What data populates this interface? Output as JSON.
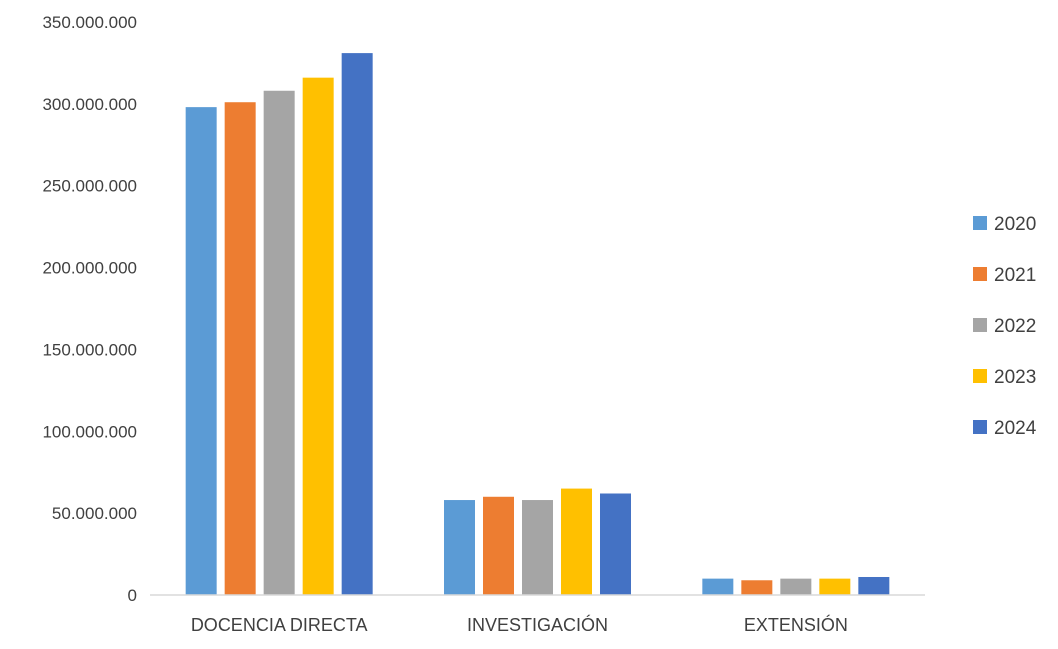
{
  "chart_data": {
    "type": "bar",
    "title": "",
    "xlabel": "",
    "ylabel": "",
    "categories": [
      "DOCENCIA DIRECTA",
      "INVESTIGACIÓN",
      "EXTENSIÓN"
    ],
    "ylim": [
      0,
      350000000
    ],
    "yticks": [
      0,
      50000000,
      100000000,
      150000000,
      200000000,
      250000000,
      300000000,
      350000000
    ],
    "ytick_labels": [
      "0",
      "50.000.000",
      "100.000.000",
      "150.000.000",
      "200.000.000",
      "250.000.000",
      "300.000.000",
      "350.000.000"
    ],
    "grid": false,
    "legend_position": "right",
    "series": [
      {
        "name": "2020",
        "color": "#5B9BD5",
        "values": [
          298000000,
          58000000,
          10000000
        ]
      },
      {
        "name": "2021",
        "color": "#ED7D31",
        "values": [
          301000000,
          60000000,
          9000000
        ]
      },
      {
        "name": "2022",
        "color": "#A5A5A5",
        "values": [
          308000000,
          58000000,
          10000000
        ]
      },
      {
        "name": "2023",
        "color": "#FFC000",
        "values": [
          316000000,
          65000000,
          10000000
        ]
      },
      {
        "name": "2024",
        "color": "#4472C4",
        "values": [
          331000000,
          62000000,
          11000000
        ]
      }
    ]
  }
}
